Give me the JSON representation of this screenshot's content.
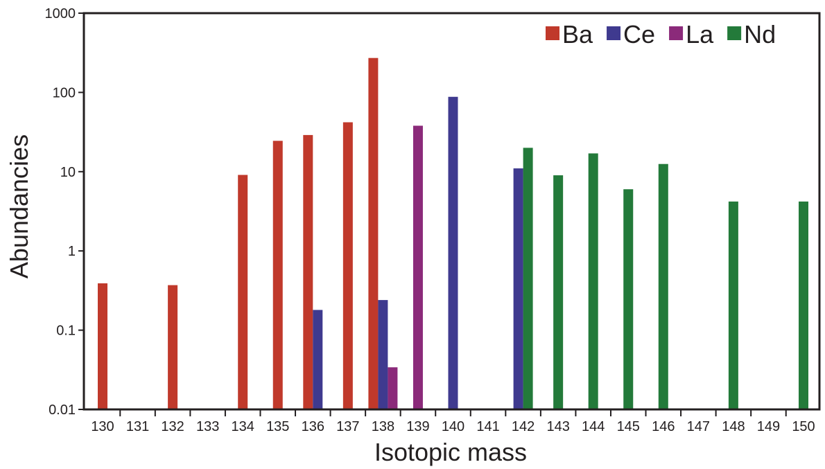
{
  "chart_data": {
    "type": "bar",
    "xlabel": "Isotopic mass",
    "ylabel": "Abundancies",
    "yscale": "log",
    "ylim": [
      0.01,
      1000
    ],
    "yticks": [
      {
        "value": 0.01,
        "label": "0.01"
      },
      {
        "value": 0.1,
        "label": "0.1"
      },
      {
        "value": 1,
        "label": "1"
      },
      {
        "value": 10,
        "label": "10"
      },
      {
        "value": 100,
        "label": "100"
      },
      {
        "value": 1000,
        "label": "1000"
      }
    ],
    "categories": [
      "130",
      "131",
      "132",
      "133",
      "134",
      "135",
      "136",
      "137",
      "138",
      "139",
      "140",
      "141",
      "142",
      "143",
      "144",
      "145",
      "146",
      "147",
      "148",
      "149",
      "150"
    ],
    "legend_position": "top-right",
    "grid": false,
    "series": [
      {
        "name": "Ba",
        "color": "#c0392b",
        "points": [
          {
            "x": "130",
            "y": 0.39
          },
          {
            "x": "132",
            "y": 0.37
          },
          {
            "x": "134",
            "y": 9.1
          },
          {
            "x": "135",
            "y": 24.5
          },
          {
            "x": "136",
            "y": 29
          },
          {
            "x": "137",
            "y": 42
          },
          {
            "x": "138",
            "y": 272
          }
        ]
      },
      {
        "name": "Ce",
        "color": "#3f3a8f",
        "points": [
          {
            "x": "136",
            "y": 0.18
          },
          {
            "x": "138",
            "y": 0.24
          },
          {
            "x": "140",
            "y": 88
          },
          {
            "x": "142",
            "y": 11
          }
        ]
      },
      {
        "name": "La",
        "color": "#8b2a7a",
        "points": [
          {
            "x": "138",
            "y": 0.034
          },
          {
            "x": "139",
            "y": 38
          }
        ]
      },
      {
        "name": "Nd",
        "color": "#237a3a",
        "points": [
          {
            "x": "142",
            "y": 20
          },
          {
            "x": "143",
            "y": 9
          },
          {
            "x": "144",
            "y": 17
          },
          {
            "x": "145",
            "y": 6
          },
          {
            "x": "146",
            "y": 12.5
          },
          {
            "x": "148",
            "y": 4.2
          },
          {
            "x": "150",
            "y": 4.2
          }
        ]
      }
    ]
  }
}
